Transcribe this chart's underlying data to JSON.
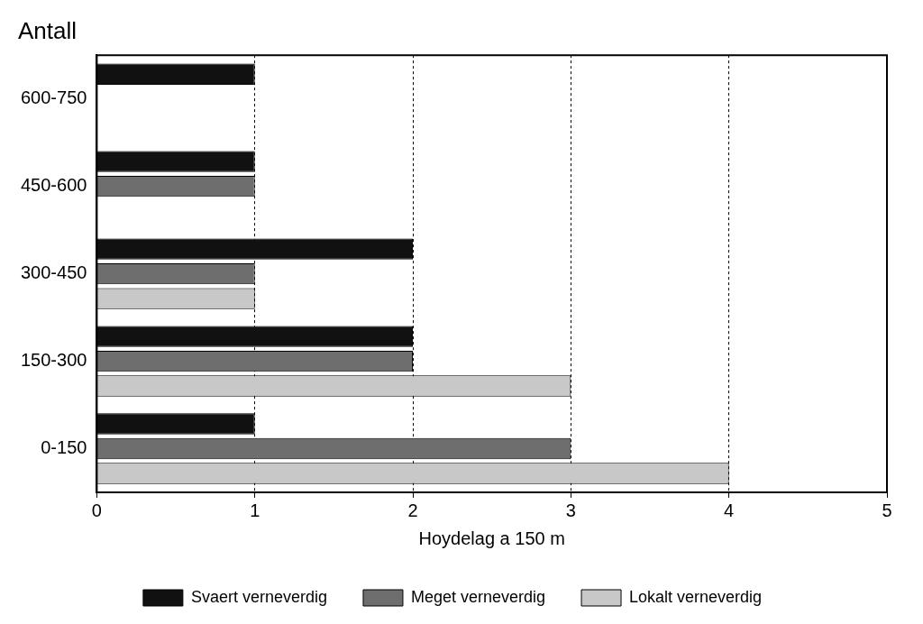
{
  "chart_data": {
    "type": "bar",
    "orientation": "horizontal",
    "title": "Antall",
    "xlabel": "Hoydelag a 150 m",
    "categories": [
      "600-750",
      "450-600",
      "300-450",
      "150-300",
      "0-150"
    ],
    "series": [
      {
        "name": "Svaert verneverdig",
        "color": "#111111",
        "values": [
          1,
          1,
          2,
          2,
          1
        ]
      },
      {
        "name": "Meget verneverdig",
        "color": "#6e6e6e",
        "values": [
          null,
          1,
          1,
          2,
          3
        ]
      },
      {
        "name": "Lokalt verneverdig",
        "color": "#c8c8c8",
        "values": [
          null,
          null,
          1,
          3,
          4
        ]
      }
    ],
    "xlim": [
      0,
      5
    ],
    "xticks": [
      0,
      1,
      2,
      3,
      4,
      5
    ],
    "grid": "x",
    "legend": "bottom"
  }
}
